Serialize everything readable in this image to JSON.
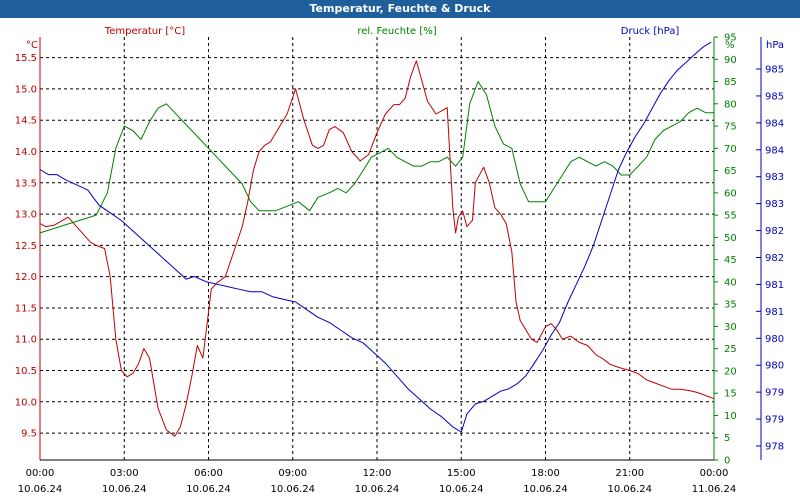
{
  "window_title": "Temperatur, Feuchte & Druck",
  "chart_data": {
    "type": "line",
    "title": "Temperatur, Feuchte & Druck",
    "grid": true,
    "x_ticks": [
      {
        "time": "00:00",
        "date": "10.06.24"
      },
      {
        "time": "03:00",
        "date": "10.06.24"
      },
      {
        "time": "06:00",
        "date": "10.06.24"
      },
      {
        "time": "09:00",
        "date": "10.06.24"
      },
      {
        "time": "12:00",
        "date": "10.06.24"
      },
      {
        "time": "15:00",
        "date": "10.06.24"
      },
      {
        "time": "18:00",
        "date": "10.06.24"
      },
      {
        "time": "21:00",
        "date": "10.06.24"
      },
      {
        "time": "00:00",
        "date": "11.06.24"
      }
    ],
    "axes": {
      "temperature": {
        "label": "Temperatur [°C]",
        "unit": "°C",
        "color": "#c00000",
        "side": "left",
        "ylim": [
          9.07,
          15.83
        ],
        "ticks": [
          "9.5",
          "10.0",
          "10.5",
          "11.0",
          "11.5",
          "12.0",
          "12.5",
          "13.0",
          "13.5",
          "14.0",
          "14.5",
          "15.0",
          "15.5"
        ]
      },
      "humidity": {
        "label": "rel. Feuchte [%]",
        "unit": "%",
        "color": "#008000",
        "side": "right",
        "ylim": [
          0,
          95
        ],
        "ticks": [
          "0",
          "5",
          "10",
          "15",
          "20",
          "25",
          "30",
          "35",
          "40",
          "45",
          "50",
          "55",
          "60",
          "65",
          "70",
          "75",
          "80",
          "85",
          "90",
          "95"
        ]
      },
      "pressure": {
        "label": "Druck [hPa]",
        "unit": "hPa",
        "color": "#0000c0",
        "side": "right",
        "ylim": [
          977.5,
          985.8
        ],
        "ticks": [
          "978",
          "979",
          "979",
          "980",
          "980",
          "981",
          "981",
          "982",
          "982",
          "983",
          "983",
          "984",
          "984",
          "985",
          "985"
        ]
      }
    },
    "series": [
      {
        "name": "Temperatur [°C]",
        "axis": "temperature",
        "x": [
          0,
          0.2,
          0.5,
          1,
          1.4,
          1.8,
          2,
          2.3,
          2.5,
          2.7,
          2.9,
          3.1,
          3.3,
          3.5,
          3.7,
          3.9,
          4.2,
          4.5,
          4.8,
          5,
          5.2,
          5.4,
          5.6,
          5.8,
          6.1,
          6.3,
          6.6,
          6.9,
          7.2,
          7.4,
          7.6,
          7.8,
          8,
          8.2,
          8.4,
          8.8,
          9.1,
          9.4,
          9.7,
          9.9,
          10.1,
          10.3,
          10.5,
          10.8,
          11.1,
          11.4,
          11.7,
          12,
          12.3,
          12.6,
          12.8,
          13,
          13.2,
          13.4,
          13.8,
          14.1,
          14.5,
          14.7,
          14.8,
          14.9,
          15.05,
          15.2,
          15.4,
          15.5,
          15.8,
          16,
          16.2,
          16.4,
          16.6,
          16.8,
          16.95,
          17.1,
          17.3,
          17.5,
          17.7,
          18,
          18.2,
          18.4,
          18.6,
          18.9,
          19.2,
          19.5,
          19.8,
          20,
          20.3,
          20.6,
          21,
          21.3,
          21.6,
          21.9,
          22.2,
          22.5,
          22.8,
          23.1,
          23.4,
          23.7,
          24
        ],
        "values": [
          12.85,
          12.8,
          12.82,
          12.95,
          12.75,
          12.55,
          12.5,
          12.45,
          12.0,
          11.0,
          10.5,
          10.4,
          10.45,
          10.6,
          10.85,
          10.7,
          9.9,
          9.55,
          9.45,
          9.6,
          9.95,
          10.4,
          10.9,
          10.7,
          11.8,
          11.9,
          12.0,
          12.4,
          12.8,
          13.2,
          13.7,
          14.0,
          14.1,
          14.15,
          14.3,
          14.6,
          15.0,
          14.5,
          14.1,
          14.05,
          14.1,
          14.35,
          14.4,
          14.3,
          14.0,
          13.85,
          13.95,
          14.3,
          14.6,
          14.75,
          14.75,
          14.85,
          15.2,
          15.45,
          14.8,
          14.6,
          14.7,
          13.1,
          12.7,
          12.95,
          13.05,
          12.8,
          12.9,
          13.5,
          13.75,
          13.5,
          13.1,
          13.0,
          12.85,
          12.4,
          11.6,
          11.3,
          11.15,
          11.0,
          10.95,
          11.2,
          11.25,
          11.15,
          11.0,
          11.05,
          10.95,
          10.9,
          10.75,
          10.7,
          10.6,
          10.55,
          10.5,
          10.45,
          10.35,
          10.3,
          10.25,
          10.2,
          10.2,
          10.18,
          10.15,
          10.1,
          10.05
        ]
      },
      {
        "name": "rel. Feuchte [%]",
        "axis": "humidity",
        "x": [
          0,
          0.5,
          1,
          1.5,
          2,
          2.4,
          2.7,
          3,
          3.3,
          3.6,
          3.9,
          4.2,
          4.5,
          4.8,
          5.1,
          5.4,
          5.7,
          6,
          6.3,
          6.6,
          6.9,
          7.2,
          7.5,
          7.8,
          8.1,
          8.4,
          8.8,
          9.2,
          9.6,
          9.9,
          10.3,
          10.6,
          10.9,
          11.2,
          11.5,
          11.8,
          12.1,
          12.4,
          12.7,
          13,
          13.3,
          13.6,
          13.9,
          14.2,
          14.5,
          14.8,
          15.05,
          15.3,
          15.6,
          15.9,
          16.2,
          16.5,
          16.8,
          17.1,
          17.4,
          17.7,
          18,
          18.3,
          18.6,
          18.9,
          19.2,
          19.5,
          19.8,
          20.1,
          20.4,
          20.7,
          21,
          21.3,
          21.6,
          21.9,
          22.2,
          22.5,
          22.8,
          23.1,
          23.4,
          23.7,
          24
        ],
        "values": [
          51,
          52,
          53,
          54,
          55,
          60,
          70,
          75,
          74,
          72,
          76,
          79,
          80,
          78,
          76,
          74,
          72,
          70,
          68,
          66,
          64,
          62,
          58,
          56,
          56,
          56,
          57,
          58,
          56,
          59,
          60,
          61,
          60,
          62,
          65,
          68,
          69,
          70,
          68,
          67,
          66,
          66,
          67,
          67,
          68,
          66,
          68,
          80,
          85,
          82,
          75,
          71,
          70,
          62,
          58,
          58,
          58,
          61,
          64,
          67,
          68,
          67,
          66,
          67,
          66,
          64,
          64,
          66,
          68,
          72,
          74,
          75,
          76,
          78,
          79,
          78,
          78
        ]
      },
      {
        "name": "Druck [hPa]",
        "axis": "pressure",
        "x": [
          0,
          0.3,
          0.6,
          0.9,
          1.3,
          1.7,
          2.1,
          2.5,
          2.9,
          3.3,
          3.7,
          4.1,
          4.5,
          4.9,
          5.2,
          5.5,
          5.9,
          6.3,
          6.7,
          7.1,
          7.5,
          7.9,
          8.3,
          8.7,
          9.1,
          9.5,
          9.9,
          10.3,
          10.7,
          11.1,
          11.5,
          11.9,
          12.3,
          12.7,
          13.1,
          13.5,
          13.9,
          14.3,
          14.7,
          15,
          15.2,
          15.5,
          15.8,
          16.1,
          16.4,
          16.7,
          17,
          17.3,
          17.6,
          17.9,
          18.2,
          18.5,
          18.8,
          19.1,
          19.4,
          19.7,
          20,
          20.3,
          20.6,
          20.9,
          21.2,
          21.5,
          21.8,
          22.1,
          22.4,
          22.7,
          23,
          23.3,
          23.6,
          23.9
        ],
        "values": [
          983.2,
          983.1,
          983.1,
          983.0,
          982.9,
          982.8,
          982.5,
          982.35,
          982.2,
          982.0,
          981.8,
          981.6,
          981.4,
          981.2,
          981.05,
          981.1,
          981.0,
          980.95,
          980.9,
          980.85,
          980.8,
          980.8,
          980.7,
          980.65,
          980.6,
          980.45,
          980.3,
          980.2,
          980.05,
          979.9,
          979.8,
          979.6,
          979.4,
          979.15,
          978.9,
          978.7,
          978.5,
          978.35,
          978.15,
          978.05,
          978.4,
          978.6,
          978.65,
          978.75,
          978.85,
          978.9,
          979.0,
          979.15,
          979.4,
          979.65,
          979.95,
          980.2,
          980.6,
          980.95,
          981.3,
          981.7,
          982.2,
          982.7,
          983.2,
          983.55,
          983.85,
          984.1,
          984.4,
          984.7,
          984.95,
          985.15,
          985.3,
          985.45,
          985.6,
          985.7
        ]
      }
    ]
  }
}
